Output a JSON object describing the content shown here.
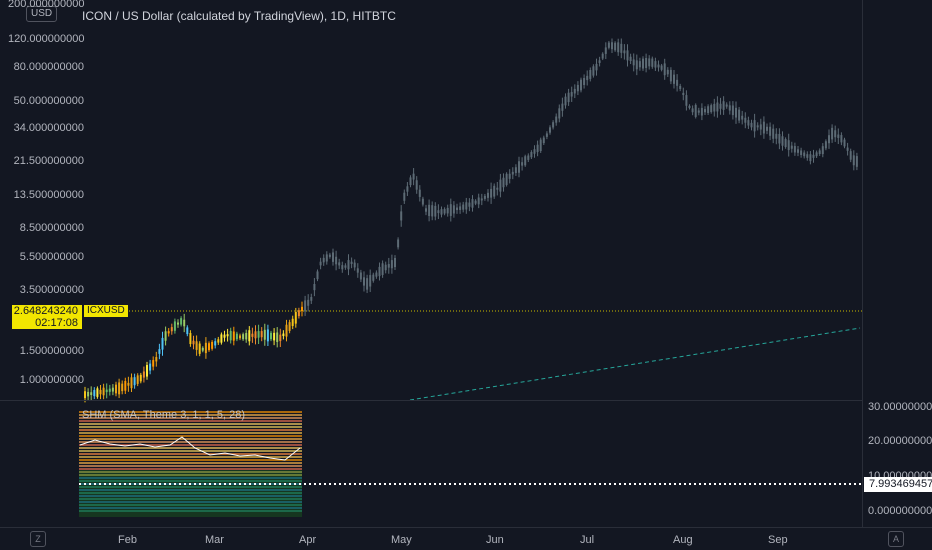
{
  "header": {
    "title": "ICON / US Dollar (calculated by TradingView), 1D, HITBTC"
  },
  "currency_badge": "USD",
  "price_axis": {
    "labels": [
      "200.000000000",
      "120.000000000",
      "80.000000000",
      "50.000000000",
      "34.000000000",
      "21.500000000",
      "13.500000000",
      "8.500000000",
      "5.500000000",
      "3.500000000",
      "1.500000000",
      "1.000000000"
    ]
  },
  "current_price": {
    "value": "2.648243240",
    "countdown": "02:17:08",
    "symbol": "ICXUSD"
  },
  "indicator": {
    "title": "SHM (SMA, Theme 3, 1, 1, 5, 28)",
    "axis_labels": [
      "30.000000000",
      "20.000000000",
      "10.000000000",
      "0.000000000"
    ],
    "current_value": "7.993469457"
  },
  "time_axis": {
    "months": [
      "Feb",
      "Mar",
      "Apr",
      "May",
      "Jun",
      "Jul",
      "Aug",
      "Sep"
    ]
  },
  "corner_buttons": {
    "left": "Z",
    "right": "A"
  },
  "colors": {
    "background": "#131722",
    "candle_future": "#5d6b75",
    "price_line": "#c8b900",
    "trend_line": "#26a69a",
    "highlight": "#f2e600"
  }
}
